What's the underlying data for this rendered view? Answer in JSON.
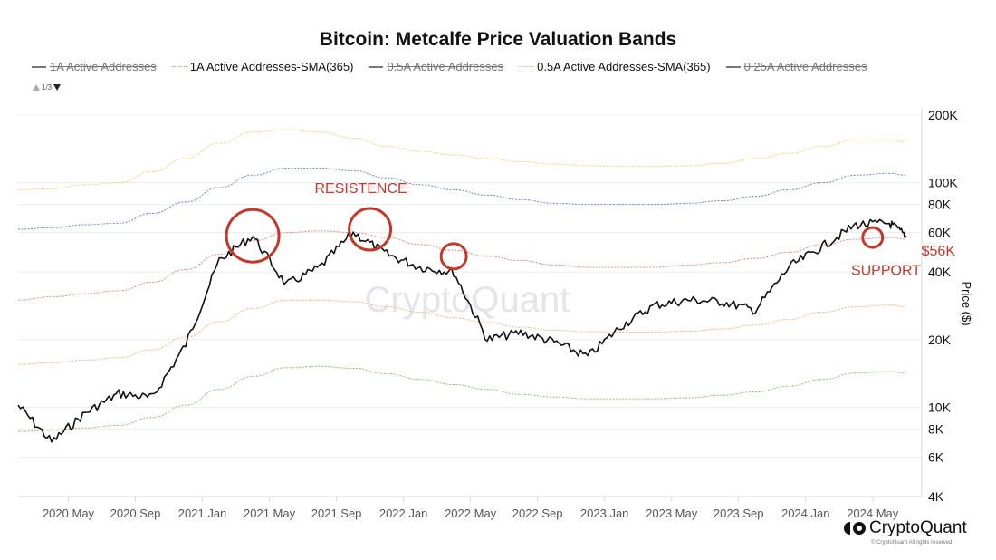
{
  "title": "Bitcoin: Metcalfe Price Valuation Bands",
  "legend": {
    "items": [
      {
        "label": "1A Active Addresses",
        "enabled": false,
        "style": "solid",
        "color": "#777777"
      },
      {
        "label": "1A Active Addresses-SMA(365)",
        "enabled": true,
        "style": "dotted",
        "color": "#d98b8b"
      },
      {
        "label": "0.5A Active Addresses",
        "enabled": false,
        "style": "solid",
        "color": "#777777"
      },
      {
        "label": "0.5A Active Addresses-SMA(365)",
        "enabled": true,
        "style": "dotted",
        "color": "#e8b98a"
      },
      {
        "label": "0.25A Active Addresses",
        "enabled": false,
        "style": "solid",
        "color": "#777777"
      }
    ],
    "pager": "1/3"
  },
  "watermark": "CryptoQuant",
  "brand": {
    "logo_text": "CryptoQuant",
    "copyright": "© CryptoQuant All rights reserved."
  },
  "chart_data": {
    "type": "line",
    "title": "Bitcoin: Metcalfe Price Valuation Bands",
    "xlabel": "",
    "ylabel": "Price ($)",
    "yscale": "log",
    "ylim": [
      4000,
      200000
    ],
    "xlim": [
      "2020-02",
      "2024-07"
    ],
    "grid": true,
    "x_ticks": [
      "2020 May",
      "2020 Sep",
      "2021 Jan",
      "2021 May",
      "2021 Sep",
      "2022 Jan",
      "2022 May",
      "2022 Sep",
      "2023 Jan",
      "2023 May",
      "2023 Sep",
      "2024 Jan",
      "2024 May"
    ],
    "y_ticks": [
      {
        "value": 4000,
        "label": "4K"
      },
      {
        "value": 6000,
        "label": "6K"
      },
      {
        "value": 8000,
        "label": "8K"
      },
      {
        "value": 10000,
        "label": "10K"
      },
      {
        "value": 20000,
        "label": "20K"
      },
      {
        "value": 40000,
        "label": "40K"
      },
      {
        "value": 60000,
        "label": "60K"
      },
      {
        "value": 80000,
        "label": "80K"
      },
      {
        "value": 100000,
        "label": "100K"
      },
      {
        "value": 200000,
        "label": "200K"
      }
    ],
    "x": [
      "2020-02",
      "2020-04",
      "2020-06",
      "2020-08",
      "2020-10",
      "2020-12",
      "2021-02",
      "2021-04",
      "2021-06",
      "2021-08",
      "2021-10",
      "2021-12",
      "2022-02",
      "2022-04",
      "2022-06",
      "2022-08",
      "2022-10",
      "2022-12",
      "2023-02",
      "2023-04",
      "2023-06",
      "2023-08",
      "2023-10",
      "2023-12",
      "2024-02",
      "2024-04",
      "2024-06",
      "2024-07"
    ],
    "series": [
      {
        "name": "Band top (yellow)",
        "color": "#e6d27a",
        "style": "dotted",
        "values": [
          93000,
          94000,
          98000,
          100000,
          112000,
          128000,
          150000,
          168000,
          172000,
          168000,
          158000,
          145000,
          138000,
          133000,
          128000,
          124000,
          121000,
          119000,
          118000,
          118000,
          119000,
          122000,
          128000,
          135000,
          145000,
          155000,
          155000,
          152000
        ]
      },
      {
        "name": "Band (blue)",
        "color": "#6f86c7",
        "style": "dotted",
        "values": [
          62000,
          63000,
          65000,
          66000,
          73000,
          82000,
          95000,
          108000,
          116000,
          116000,
          113000,
          105000,
          98000,
          93000,
          88000,
          84000,
          81000,
          80000,
          80000,
          80000,
          81000,
          83000,
          87000,
          93000,
          100000,
          108000,
          110000,
          108000
        ]
      },
      {
        "name": "1A Active Addresses-SMA(365)",
        "color": "#d98b8b",
        "style": "dotted",
        "values": [
          30000,
          31000,
          32000,
          33000,
          36000,
          41000,
          48000,
          55000,
          60000,
          61000,
          60000,
          57000,
          53000,
          50000,
          47000,
          45000,
          43000,
          42000,
          42000,
          42000,
          43000,
          44000,
          46000,
          49000,
          53000,
          56000,
          57000,
          56000
        ]
      },
      {
        "name": "0.5A Active Addresses-SMA(365)",
        "color": "#e8b98a",
        "style": "dotted",
        "values": [
          15500,
          15800,
          16200,
          16600,
          18000,
          20500,
          24000,
          27500,
          30000,
          30000,
          29500,
          28000,
          26500,
          25000,
          23800,
          22700,
          22000,
          21700,
          21600,
          21600,
          21800,
          22300,
          23200,
          24600,
          26500,
          28000,
          28500,
          28000
        ]
      },
      {
        "name": "Band bottom (green)",
        "color": "#8cbf7a",
        "style": "dotted",
        "values": [
          7800,
          7900,
          8100,
          8300,
          9000,
          10200,
          12000,
          13700,
          15000,
          15200,
          14900,
          14100,
          13300,
          12600,
          12000,
          11400,
          11100,
          10900,
          10900,
          10900,
          11000,
          11300,
          11700,
          12400,
          13300,
          14200,
          14400,
          14200
        ]
      },
      {
        "name": "BTC Price",
        "color": "#111111",
        "style": "solid",
        "values": [
          10200,
          7000,
          9400,
          11500,
          11000,
          19000,
          45000,
          58000,
          35000,
          42000,
          60000,
          48000,
          42000,
          40000,
          20000,
          21500,
          19500,
          16800,
          23000,
          28500,
          30000,
          29500,
          27000,
          42000,
          52000,
          65000,
          66000,
          58000
        ]
      }
    ],
    "annotations": [
      {
        "type": "text",
        "text": "RESISTENCE",
        "x": "2021-11",
        "y": 95000
      },
      {
        "type": "circle",
        "x": "2021-04",
        "y": 58000
      },
      {
        "type": "circle",
        "x": "2021-11",
        "y": 62000
      },
      {
        "type": "circle",
        "x": "2022-04",
        "y": 47000
      },
      {
        "type": "circle",
        "x": "2024-05",
        "y": 57000
      },
      {
        "type": "text",
        "text": "$56K",
        "x": "2024-07",
        "y": 50000
      },
      {
        "type": "text",
        "text": "SUPPORT",
        "x": "2024-05",
        "y": 41000
      }
    ]
  }
}
